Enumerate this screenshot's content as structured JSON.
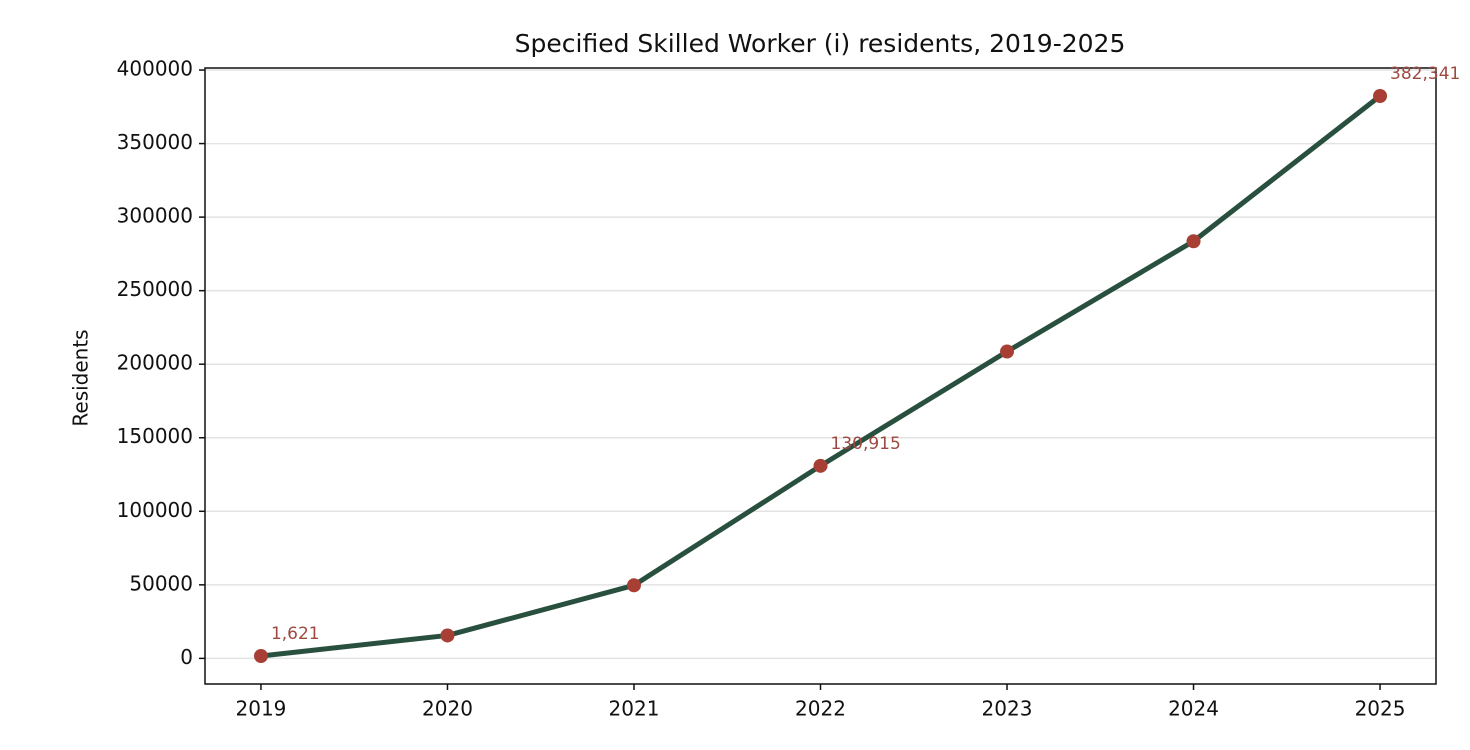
{
  "chart_data": {
    "type": "line",
    "title": "Specified Skilled Worker (i) residents, 2019-2025",
    "y_label": "Residents",
    "x": [
      2019,
      2020,
      2021,
      2022,
      2023,
      2024,
      2025
    ],
    "series": [
      {
        "name": "Residents",
        "color": "#29503f",
        "marker_color": "#a83f35",
        "values": [
          1621,
          15600,
          49700,
          130915,
          208600,
          283600,
          382341
        ],
        "value_labels": [
          "1,621",
          null,
          null,
          "130,915",
          null,
          null,
          "382,341"
        ]
      }
    ],
    "xlim": [
      2018.7,
      2025.3
    ],
    "xticks": [
      2019,
      2020,
      2021,
      2022,
      2023,
      2024,
      2025
    ],
    "ylim": [
      -17415,
      401377
    ],
    "yticks": [
      0,
      50000,
      100000,
      150000,
      200000,
      250000,
      300000,
      350000,
      400000
    ],
    "grid": true
  }
}
